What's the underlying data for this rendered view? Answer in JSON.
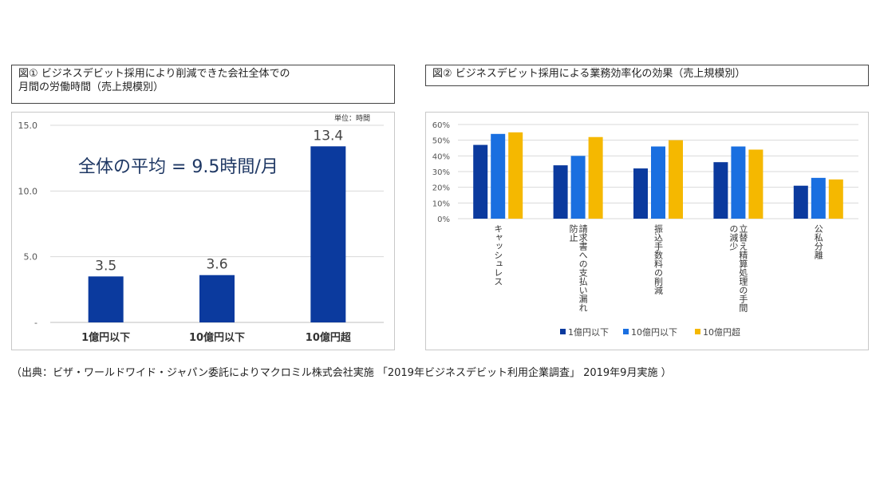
{
  "figure1": {
    "title_line1": "図① ビジネスデビット採用により削減できた会社全体での",
    "title_line2": "月間の労働時間（売上規模別）",
    "unit_label": "単位：時間",
    "annotation": "全体の平均 = 9.5時間/月"
  },
  "figure2": {
    "title": "図② ビジネスデビット採用による業務効率化の効果（売上規模別）"
  },
  "footnote": "（出典：ビザ・ワールドワイド・ジャパン委託によりマクロミル株式会社実施 「2019年ビジネスデビット利用企業調査」 2019年9月実施 ）",
  "chart_data": [
    {
      "type": "bar",
      "categories": [
        "1億円以下",
        "10億円以下",
        "10億円超"
      ],
      "values": [
        3.5,
        3.6,
        13.4
      ],
      "data_labels": [
        "3.5",
        "3.6",
        "13.4"
      ],
      "y_tick_labels": [
        "-",
        "5.0",
        "10.0",
        "15.0"
      ],
      "y_ticks": [
        0,
        5,
        10,
        15
      ],
      "ylim": [
        0,
        15
      ],
      "grid": true,
      "color": "#0b3a9e"
    },
    {
      "type": "bar",
      "categories": [
        "キャッシュレス",
        "請求書への支払い漏れ防止",
        "振込手数料の削減",
        "立替え精算処理の手間の減少",
        "公私分離"
      ],
      "category_label_lines": [
        [
          "キャッシュレス"
        ],
        [
          "請求書への支払い漏れ",
          "防止"
        ],
        [
          "振込手数料の削減"
        ],
        [
          "立替え精算処理の手間",
          "の減少"
        ],
        [
          "公私分離"
        ]
      ],
      "series": [
        {
          "name": "1億円以下",
          "values": [
            47,
            34,
            32,
            36,
            21
          ],
          "color": "#0b3a9e"
        },
        {
          "name": "10億円以下",
          "values": [
            54,
            40,
            46,
            46,
            26
          ],
          "color": "#1a6fe0"
        },
        {
          "name": "10億円超",
          "values": [
            55,
            52,
            50,
            44,
            25
          ],
          "color": "#f5b800"
        }
      ],
      "y_tick_labels": [
        "0%",
        "10%",
        "20%",
        "30%",
        "40%",
        "50%",
        "60%"
      ],
      "y_ticks": [
        0,
        10,
        20,
        30,
        40,
        50,
        60
      ],
      "ylim": [
        0,
        60
      ],
      "grid": true,
      "legend_position": "bottom"
    }
  ]
}
